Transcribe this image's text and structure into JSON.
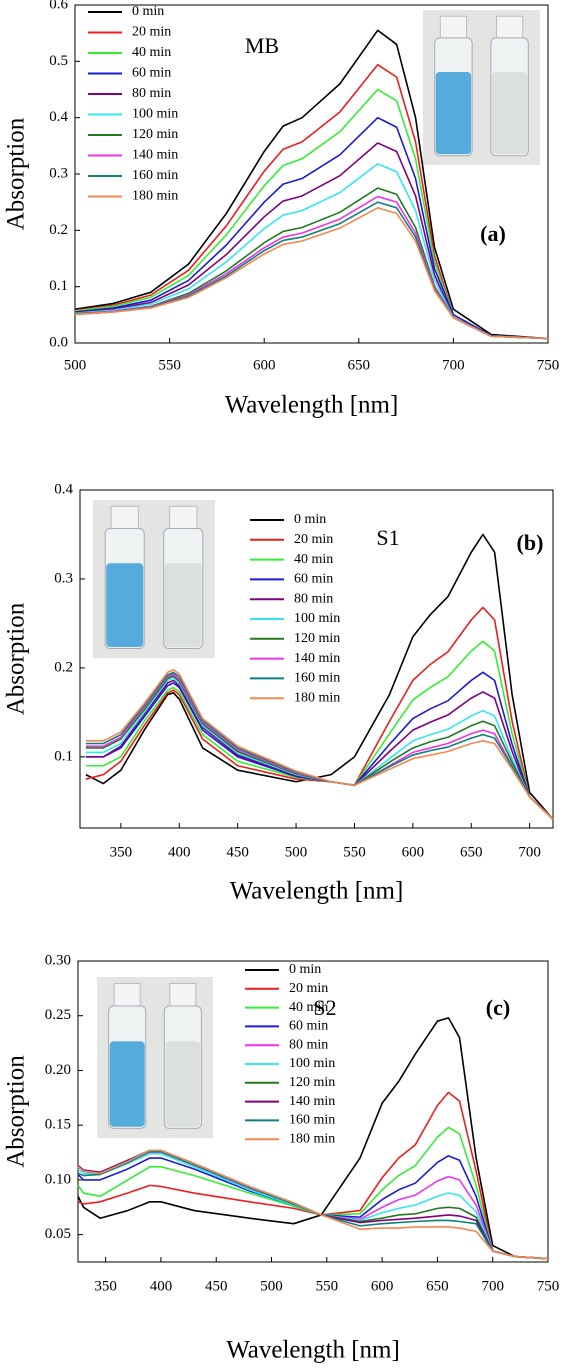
{
  "chart_data": [
    {
      "type": "line",
      "title": "MB",
      "annotation": "(a)",
      "xlabel": "Wavelength [nm]",
      "ylabel": "Absorption",
      "legend_position": "upper left",
      "xlim": [
        500,
        750
      ],
      "ylim": [
        0,
        0.6
      ],
      "xticks": [
        500,
        550,
        600,
        650,
        700,
        750
      ],
      "yticks": [
        {
          "value": 0,
          "label": "0.0"
        },
        0.1,
        0.2,
        0.3,
        0.4,
        0.5,
        0.6
      ],
      "x": [
        500,
        520,
        540,
        560,
        580,
        600,
        610,
        620,
        640,
        660,
        670,
        680,
        690,
        700,
        720,
        750
      ],
      "series": [
        {
          "name": "0 min",
          "color": "#000000",
          "values": [
            0.06,
            0.07,
            0.09,
            0.14,
            0.23,
            0.34,
            0.385,
            0.4,
            0.46,
            0.555,
            0.53,
            0.4,
            0.17,
            0.06,
            0.015,
            0.008
          ]
        },
        {
          "name": "20 min",
          "color": "#ee1c1c",
          "values": [
            0.058,
            0.067,
            0.085,
            0.129,
            0.208,
            0.305,
            0.344,
            0.357,
            0.41,
            0.494,
            0.472,
            0.357,
            0.155,
            0.05,
            0.013,
            0.008
          ]
        },
        {
          "name": "40 min",
          "color": "#33ee33",
          "values": [
            0.057,
            0.065,
            0.081,
            0.12,
            0.192,
            0.279,
            0.315,
            0.327,
            0.375,
            0.45,
            0.43,
            0.327,
            0.144,
            0.05,
            0.013,
            0.008
          ]
        },
        {
          "name": "60 min",
          "color": "#1a1adb",
          "values": [
            0.055,
            0.062,
            0.076,
            0.111,
            0.174,
            0.25,
            0.282,
            0.292,
            0.334,
            0.4,
            0.383,
            0.292,
            0.132,
            0.05,
            0.013,
            0.008
          ]
        },
        {
          "name": "80 min",
          "color": "#800080",
          "values": [
            0.054,
            0.06,
            0.072,
            0.103,
            0.157,
            0.224,
            0.252,
            0.261,
            0.297,
            0.355,
            0.34,
            0.261,
            0.121,
            0.045,
            0.012,
            0.008
          ]
        },
        {
          "name": "100 min",
          "color": "#33e6f0",
          "values": [
            0.053,
            0.058,
            0.069,
            0.096,
            0.144,
            0.203,
            0.227,
            0.235,
            0.267,
            0.318,
            0.304,
            0.235,
            0.112,
            0.045,
            0.012,
            0.008
          ]
        },
        {
          "name": "120 min",
          "color": "#1e7b1e",
          "values": [
            0.052,
            0.056,
            0.065,
            0.088,
            0.128,
            0.178,
            0.198,
            0.205,
            0.232,
            0.275,
            0.264,
            0.205,
            0.101,
            0.045,
            0.012,
            0.008
          ]
        },
        {
          "name": "140 min",
          "color": "#ee33ee",
          "values": [
            0.051,
            0.056,
            0.064,
            0.085,
            0.123,
            0.169,
            0.188,
            0.195,
            0.22,
            0.26,
            0.25,
            0.195,
            0.098,
            0.045,
            0.012,
            0.008
          ]
        },
        {
          "name": "160 min",
          "color": "#0e8080",
          "values": [
            0.051,
            0.055,
            0.063,
            0.083,
            0.119,
            0.164,
            0.182,
            0.188,
            0.212,
            0.25,
            0.24,
            0.188,
            0.095,
            0.045,
            0.012,
            0.008
          ]
        },
        {
          "name": "180 min",
          "color": "#f4884f",
          "values": [
            0.051,
            0.055,
            0.062,
            0.081,
            0.116,
            0.158,
            0.175,
            0.181,
            0.204,
            0.24,
            0.23,
            0.181,
            0.093,
            0.045,
            0.012,
            0.008
          ]
        }
      ]
    },
    {
      "type": "line",
      "title": "S1",
      "annotation": "(b)",
      "xlabel": "Wavelength [nm]",
      "ylabel": "Absorption",
      "legend_position": "upper center",
      "xlim": [
        315,
        720
      ],
      "ylim": [
        0.02,
        0.4
      ],
      "xticks": [
        350,
        400,
        450,
        500,
        550,
        600,
        650,
        700
      ],
      "yticks": [
        0.1,
        0.2,
        0.3,
        0.4
      ],
      "x": [
        320,
        335,
        350,
        370,
        390,
        395,
        400,
        420,
        450,
        500,
        530,
        550,
        580,
        600,
        615,
        630,
        650,
        660,
        670,
        685,
        700,
        720
      ],
      "series": [
        {
          "name": "0 min",
          "color": "#000000",
          "values": [
            0.08,
            0.07,
            0.085,
            0.13,
            0.17,
            0.172,
            0.165,
            0.11,
            0.085,
            0.072,
            0.08,
            0.1,
            0.17,
            0.235,
            0.26,
            0.28,
            0.33,
            0.35,
            0.33,
            0.17,
            0.06,
            0.03
          ]
        },
        {
          "name": "20 min",
          "color": "#ee1c1c",
          "values": [
            0.075,
            0.08,
            0.095,
            0.135,
            0.172,
            0.175,
            0.17,
            0.12,
            0.09,
            0.075,
            0.072,
            0.068,
            0.14,
            0.186,
            0.204,
            0.218,
            0.254,
            0.268,
            0.254,
            0.14,
            0.055,
            0.03
          ]
        },
        {
          "name": "40 min",
          "color": "#33ee33",
          "values": [
            0.09,
            0.09,
            0.1,
            0.14,
            0.175,
            0.178,
            0.173,
            0.125,
            0.095,
            0.077,
            0.072,
            0.068,
            0.126,
            0.164,
            0.178,
            0.19,
            0.219,
            0.23,
            0.219,
            0.126,
            0.055,
            0.03
          ]
        },
        {
          "name": "60 min",
          "color": "#1a1adb",
          "values": [
            0.1,
            0.1,
            0.11,
            0.145,
            0.18,
            0.183,
            0.178,
            0.13,
            0.1,
            0.078,
            0.072,
            0.068,
            0.114,
            0.143,
            0.154,
            0.163,
            0.186,
            0.195,
            0.186,
            0.114,
            0.055,
            0.03
          ]
        },
        {
          "name": "80 min",
          "color": "#800080",
          "values": [
            0.1,
            0.1,
            0.112,
            0.148,
            0.183,
            0.186,
            0.18,
            0.133,
            0.102,
            0.079,
            0.072,
            0.068,
            0.106,
            0.13,
            0.139,
            0.147,
            0.166,
            0.173,
            0.166,
            0.106,
            0.055,
            0.03
          ]
        },
        {
          "name": "100 min",
          "color": "#33e6f0",
          "values": [
            0.105,
            0.105,
            0.115,
            0.15,
            0.186,
            0.189,
            0.183,
            0.135,
            0.104,
            0.08,
            0.072,
            0.068,
            0.098,
            0.118,
            0.125,
            0.131,
            0.146,
            0.152,
            0.146,
            0.098,
            0.055,
            0.03
          ]
        },
        {
          "name": "120 min",
          "color": "#1e7b1e",
          "values": [
            0.11,
            0.11,
            0.12,
            0.153,
            0.188,
            0.191,
            0.185,
            0.137,
            0.106,
            0.081,
            0.072,
            0.068,
            0.094,
            0.11,
            0.117,
            0.122,
            0.135,
            0.14,
            0.135,
            0.094,
            0.055,
            0.03
          ]
        },
        {
          "name": "140 min",
          "color": "#ee33ee",
          "values": [
            0.112,
            0.112,
            0.122,
            0.156,
            0.19,
            0.193,
            0.187,
            0.139,
            0.108,
            0.082,
            0.072,
            0.068,
            0.09,
            0.105,
            0.11,
            0.115,
            0.126,
            0.13,
            0.126,
            0.09,
            0.055,
            0.03
          ]
        },
        {
          "name": "160 min",
          "color": "#0e8080",
          "values": [
            0.115,
            0.115,
            0.125,
            0.158,
            0.192,
            0.195,
            0.19,
            0.141,
            0.11,
            0.083,
            0.072,
            0.068,
            0.089,
            0.102,
            0.107,
            0.111,
            0.121,
            0.125,
            0.121,
            0.089,
            0.055,
            0.03
          ]
        },
        {
          "name": "180 min",
          "color": "#f4884f",
          "values": [
            0.118,
            0.118,
            0.128,
            0.16,
            0.195,
            0.198,
            0.193,
            0.143,
            0.112,
            0.084,
            0.072,
            0.068,
            0.086,
            0.098,
            0.102,
            0.106,
            0.115,
            0.118,
            0.115,
            0.086,
            0.055,
            0.03
          ]
        }
      ]
    },
    {
      "type": "line",
      "title": "S2",
      "annotation": "(c)",
      "xlabel": "Wavelength [nm]",
      "ylabel": "Absorption",
      "legend_position": "upper center",
      "xlim": [
        325,
        750
      ],
      "ylim": [
        0.025,
        0.3
      ],
      "xticks": [
        350,
        400,
        450,
        500,
        550,
        600,
        650,
        700,
        750
      ],
      "yticks": [
        0.05,
        {
          "value": 0.1,
          "label": "0.10"
        },
        0.15,
        {
          "value": 0.2,
          "label": "0.20"
        },
        0.25,
        {
          "value": 0.3,
          "label": "0.30"
        }
      ],
      "x": [
        325,
        330,
        345,
        370,
        390,
        400,
        430,
        480,
        520,
        545,
        580,
        600,
        615,
        630,
        650,
        660,
        670,
        685,
        700,
        720,
        750
      ],
      "series": [
        {
          "name": "0 min",
          "color": "#000000",
          "values": [
            0.085,
            0.075,
            0.065,
            0.072,
            0.08,
            0.08,
            0.072,
            0.065,
            0.06,
            0.068,
            0.12,
            0.17,
            0.19,
            0.215,
            0.245,
            0.248,
            0.23,
            0.12,
            0.04,
            0.03,
            0.028
          ]
        },
        {
          "name": "20 min",
          "color": "#ee1c1c",
          "values": [
            0.08,
            0.078,
            0.08,
            0.088,
            0.095,
            0.094,
            0.088,
            0.08,
            0.074,
            0.068,
            0.072,
            0.102,
            0.12,
            0.132,
            0.168,
            0.18,
            0.172,
            0.108,
            0.035,
            0.03,
            0.028
          ]
        },
        {
          "name": "40 min",
          "color": "#33ee33",
          "values": [
            0.095,
            0.088,
            0.085,
            0.1,
            0.112,
            0.112,
            0.104,
            0.088,
            0.076,
            0.068,
            0.069,
            0.091,
            0.104,
            0.113,
            0.139,
            0.148,
            0.142,
            0.095,
            0.035,
            0.03,
            0.028
          ]
        },
        {
          "name": "60 min",
          "color": "#1a1adb",
          "values": [
            0.105,
            0.1,
            0.1,
            0.11,
            0.12,
            0.12,
            0.11,
            0.09,
            0.077,
            0.068,
            0.066,
            0.082,
            0.091,
            0.097,
            0.116,
            0.122,
            0.118,
            0.085,
            0.035,
            0.03,
            0.028
          ]
        },
        {
          "name": "80 min",
          "color": "#ee33ee",
          "values": [
            0.112,
            0.108,
            0.105,
            0.115,
            0.125,
            0.125,
            0.113,
            0.092,
            0.078,
            0.068,
            0.064,
            0.075,
            0.082,
            0.086,
            0.099,
            0.103,
            0.1,
            0.077,
            0.035,
            0.03,
            0.028
          ]
        },
        {
          "name": "100 min",
          "color": "#33e6f0",
          "values": [
            0.11,
            0.106,
            0.105,
            0.115,
            0.124,
            0.124,
            0.112,
            0.091,
            0.077,
            0.068,
            0.063,
            0.07,
            0.074,
            0.077,
            0.085,
            0.088,
            0.086,
            0.071,
            0.035,
            0.03,
            0.028
          ]
        },
        {
          "name": "120 min",
          "color": "#1e7b1e",
          "values": [
            0.113,
            0.108,
            0.107,
            0.117,
            0.126,
            0.126,
            0.114,
            0.093,
            0.078,
            0.068,
            0.062,
            0.065,
            0.068,
            0.069,
            0.074,
            0.075,
            0.074,
            0.066,
            0.035,
            0.03,
            0.028
          ]
        },
        {
          "name": "140 min",
          "color": "#800080",
          "values": [
            0.113,
            0.109,
            0.107,
            0.118,
            0.127,
            0.127,
            0.115,
            0.094,
            0.079,
            0.068,
            0.061,
            0.063,
            0.064,
            0.065,
            0.067,
            0.068,
            0.067,
            0.063,
            0.035,
            0.03,
            0.028
          ]
        },
        {
          "name": "160 min",
          "color": "#0e8080",
          "values": [
            0.106,
            0.104,
            0.105,
            0.116,
            0.126,
            0.126,
            0.114,
            0.093,
            0.078,
            0.068,
            0.058,
            0.06,
            0.061,
            0.062,
            0.063,
            0.063,
            0.062,
            0.06,
            0.035,
            0.03,
            0.028
          ]
        },
        {
          "name": "180 min",
          "color": "#f4884f",
          "values": [
            0.112,
            0.108,
            0.106,
            0.117,
            0.127,
            0.127,
            0.115,
            0.094,
            0.079,
            0.068,
            0.055,
            0.056,
            0.056,
            0.057,
            0.057,
            0.057,
            0.056,
            0.053,
            0.035,
            0.03,
            0.028
          ]
        }
      ]
    }
  ]
}
